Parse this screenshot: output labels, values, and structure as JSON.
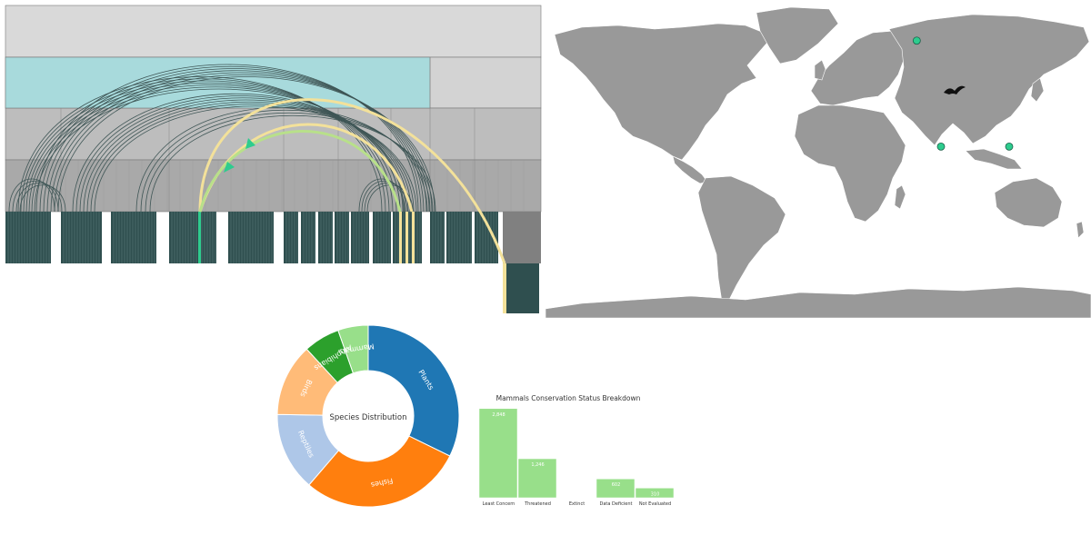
{
  "colors": {
    "background": "#ffffff",
    "land": "#999999",
    "ocean": "#ffffff",
    "marker": "#2ecc8e",
    "highlight_arc": "#f3e19a",
    "highlight_arc_2": "#b8e08a",
    "dark_bar": "#2f4f4f",
    "bar": "#98df8a"
  },
  "map": {
    "icons": [
      "bird-icon"
    ],
    "markers": [
      {
        "lon": 65,
        "lat": 67
      },
      {
        "lon": 81,
        "lat": 7
      },
      {
        "lon": 126,
        "lat": 7
      }
    ]
  },
  "chart_data": [
    {
      "type": "arc-diagram",
      "levels": 5,
      "highlight_series": 2
    },
    {
      "type": "donut",
      "center_label": "Species Distribution",
      "labels": [
        "Plants",
        "Fishes",
        "Reptiles",
        "Birds",
        "Amphibians",
        "Mammals"
      ],
      "values": [
        30,
        27,
        13,
        12,
        6,
        5
      ],
      "colors": [
        "#1f77b4",
        "#ff7f0e",
        "#aec7e8",
        "#ffbb78",
        "#2ca02c",
        "#98df8a"
      ]
    },
    {
      "type": "bar",
      "title": "Mammals Conservation Status Breakdown",
      "categories": [
        "Least Concern",
        "Threatened",
        "Extinct",
        "Data Deficient",
        "Not Evaluated"
      ],
      "values": [
        2848,
        1246,
        0,
        602,
        310
      ],
      "value_labels": [
        "2,848",
        "1,246",
        "",
        "602",
        "310"
      ],
      "ylim": [
        0,
        2900
      ],
      "color": "#98df8a"
    }
  ]
}
